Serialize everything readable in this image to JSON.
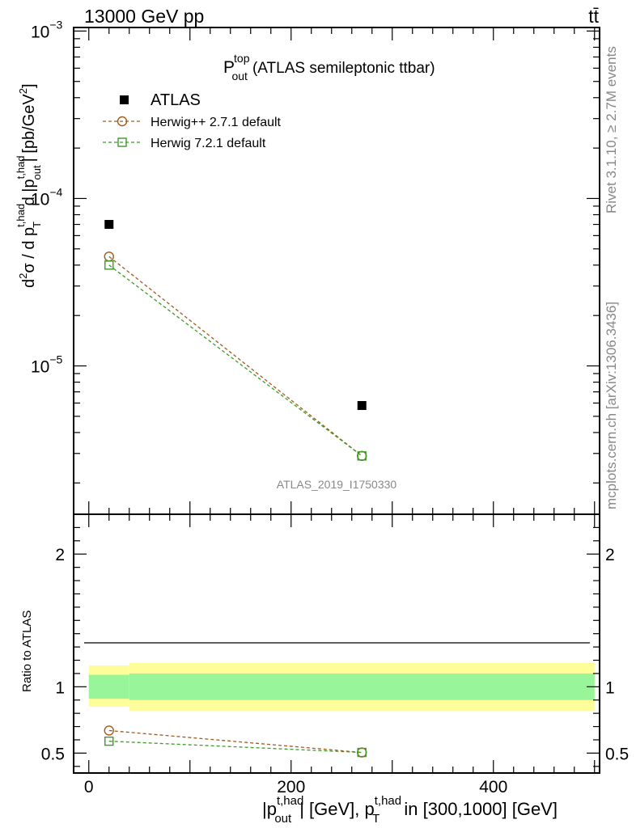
{
  "header": {
    "energy_label": "13000 GeV pp",
    "process_label": "tt̄"
  },
  "side_labels": {
    "rivet": "Rivet 3.1.10, ≥ 2.7M events",
    "mcplots": "mcplots.cern.ch [arXiv:1306.3436]"
  },
  "watermark": "ATLAS_2019_I1750330",
  "colors": {
    "atlas": "#000000",
    "herwigpp": "#a05a1e",
    "herwig7": "#3c9a28",
    "band_inner": "#99f599",
    "band_outer": "#fdfd99"
  },
  "chart_data": [
    {
      "type": "scatter",
      "title": {
        "main": "P",
        "sup": "top",
        "sub": "out",
        "rest": "(ATLAS semileptonic ttbar)"
      },
      "ylabel": {
        "part1": "d",
        "part1_sup": "2",
        "part2": "σ / d p",
        "part2_sup": "t,had",
        "part2_sub": "T",
        "part3": " d |p",
        "part3_sup": "t,had",
        "part3_sub": "out",
        "part4": "| [pb/GeV",
        "part4_sup": "2",
        "part5": "]"
      },
      "y_scale": "log",
      "ylim": [
        1.3e-06,
        0.00105
      ],
      "xlim": [
        -15,
        505
      ],
      "y_tick_labels": [
        {
          "base": "10",
          "exp": "−3",
          "value": 0.001
        },
        {
          "base": "10",
          "exp": "−4",
          "value": 0.0001
        },
        {
          "base": "10",
          "exp": "−5",
          "value": 1e-05
        }
      ],
      "legend_position": "top-left",
      "series": [
        {
          "name": "ATLAS",
          "marker": "filled-square",
          "x": [
            20,
            270
          ],
          "y": [
            7e-05,
            5.8e-06
          ]
        },
        {
          "name": "Herwig++ 2.7.1 default",
          "marker": "open-circle",
          "line": "dashed",
          "x": [
            20,
            270
          ],
          "y": [
            4.5e-05,
            2.9e-06
          ]
        },
        {
          "name": "Herwig 7.2.1 default",
          "marker": "open-square",
          "line": "dashed",
          "x": [
            20,
            270
          ],
          "y": [
            4e-05,
            2.9e-06
          ]
        }
      ]
    },
    {
      "type": "scatter",
      "ylabel": "Ratio to ATLAS",
      "xlabel": {
        "p1": "|p",
        "p1_sup": "t,had",
        "p1_sub": "out",
        "p2": "| [GeV], p",
        "p2_sup": "t,had",
        "p2_sub": "T",
        "p3": " in [300,1000] [GeV]"
      },
      "ylim": [
        0.35,
        2.3
      ],
      "xlim": [
        -15,
        505
      ],
      "y_ticks": [
        0.5,
        1,
        2
      ],
      "y_tick_labels": [
        "0.5",
        "1",
        "2"
      ],
      "x_ticks": [
        0,
        200,
        400
      ],
      "x_tick_labels": [
        "0",
        "200",
        "400"
      ],
      "bands": [
        {
          "x_from": 0,
          "x_to": 40,
          "inner": [
            0.91,
            1.09
          ],
          "outer": [
            0.85,
            1.16
          ]
        },
        {
          "x_from": 40,
          "x_to": 500,
          "inner": [
            0.9,
            1.1
          ],
          "outer": [
            0.82,
            1.18
          ]
        }
      ],
      "series": [
        {
          "name": "Herwig++ 2.7.1 default",
          "x": [
            20,
            270
          ],
          "y": [
            0.67,
            0.505
          ]
        },
        {
          "name": "Herwig 7.2.1 default",
          "x": [
            20,
            270
          ],
          "y": [
            0.59,
            0.505
          ]
        }
      ]
    }
  ]
}
